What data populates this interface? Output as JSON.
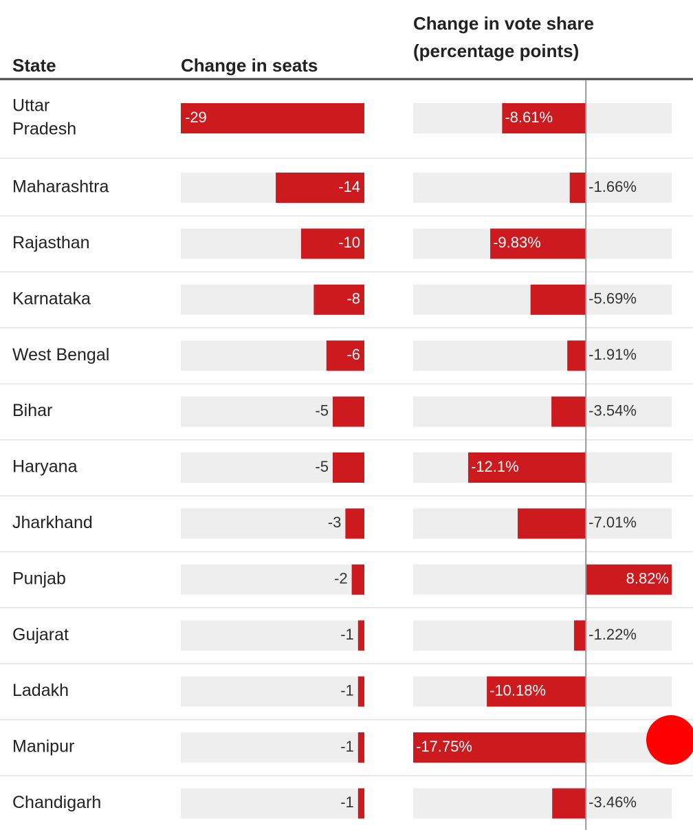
{
  "table": {
    "headers": [
      "State",
      "Change in seats",
      "Change in vote share",
      "(percentage points)"
    ],
    "seats_lim": [
      -29,
      0
    ],
    "vote_lim": [
      -17.75,
      8.82
    ],
    "color": "#cc1a1f",
    "rows": [
      {
        "state": [
          "Uttar",
          "Pradesh"
        ],
        "seats": -29,
        "vote_share": -8.61,
        "vote_label": "-8.61%"
      },
      {
        "state": [
          "Maharashtra"
        ],
        "seats": -14,
        "vote_share": -1.66,
        "vote_label": "-1.66%"
      },
      {
        "state": [
          "Rajasthan"
        ],
        "seats": -10,
        "vote_share": -9.83,
        "vote_label": "-9.83%"
      },
      {
        "state": [
          "Karnataka"
        ],
        "seats": -8,
        "vote_share": -5.69,
        "vote_label": "-5.69%"
      },
      {
        "state": [
          "West Bengal"
        ],
        "seats": -6,
        "vote_share": -1.91,
        "vote_label": "-1.91%"
      },
      {
        "state": [
          "Bihar"
        ],
        "seats": -5,
        "vote_share": -3.54,
        "vote_label": "-3.54%"
      },
      {
        "state": [
          "Haryana"
        ],
        "seats": -5,
        "vote_share": -12.1,
        "vote_label": "-12.1%"
      },
      {
        "state": [
          "Jharkhand"
        ],
        "seats": -3,
        "vote_share": -7.01,
        "vote_label": "-7.01%"
      },
      {
        "state": [
          "Punjab"
        ],
        "seats": -2,
        "vote_share": 8.82,
        "vote_label": "8.82%"
      },
      {
        "state": [
          "Gujarat"
        ],
        "seats": -1,
        "vote_share": -1.22,
        "vote_label": "-1.22%"
      },
      {
        "state": [
          "Ladakh"
        ],
        "seats": -1,
        "vote_share": -10.18,
        "vote_label": "-10.18%"
      },
      {
        "state": [
          "Manipur"
        ],
        "seats": -1,
        "vote_share": -17.75,
        "vote_label": "-17.75%"
      },
      {
        "state": [
          "Chandigarh"
        ],
        "seats": -1,
        "vote_share": -3.46,
        "vote_label": "-3.46%"
      }
    ]
  }
}
